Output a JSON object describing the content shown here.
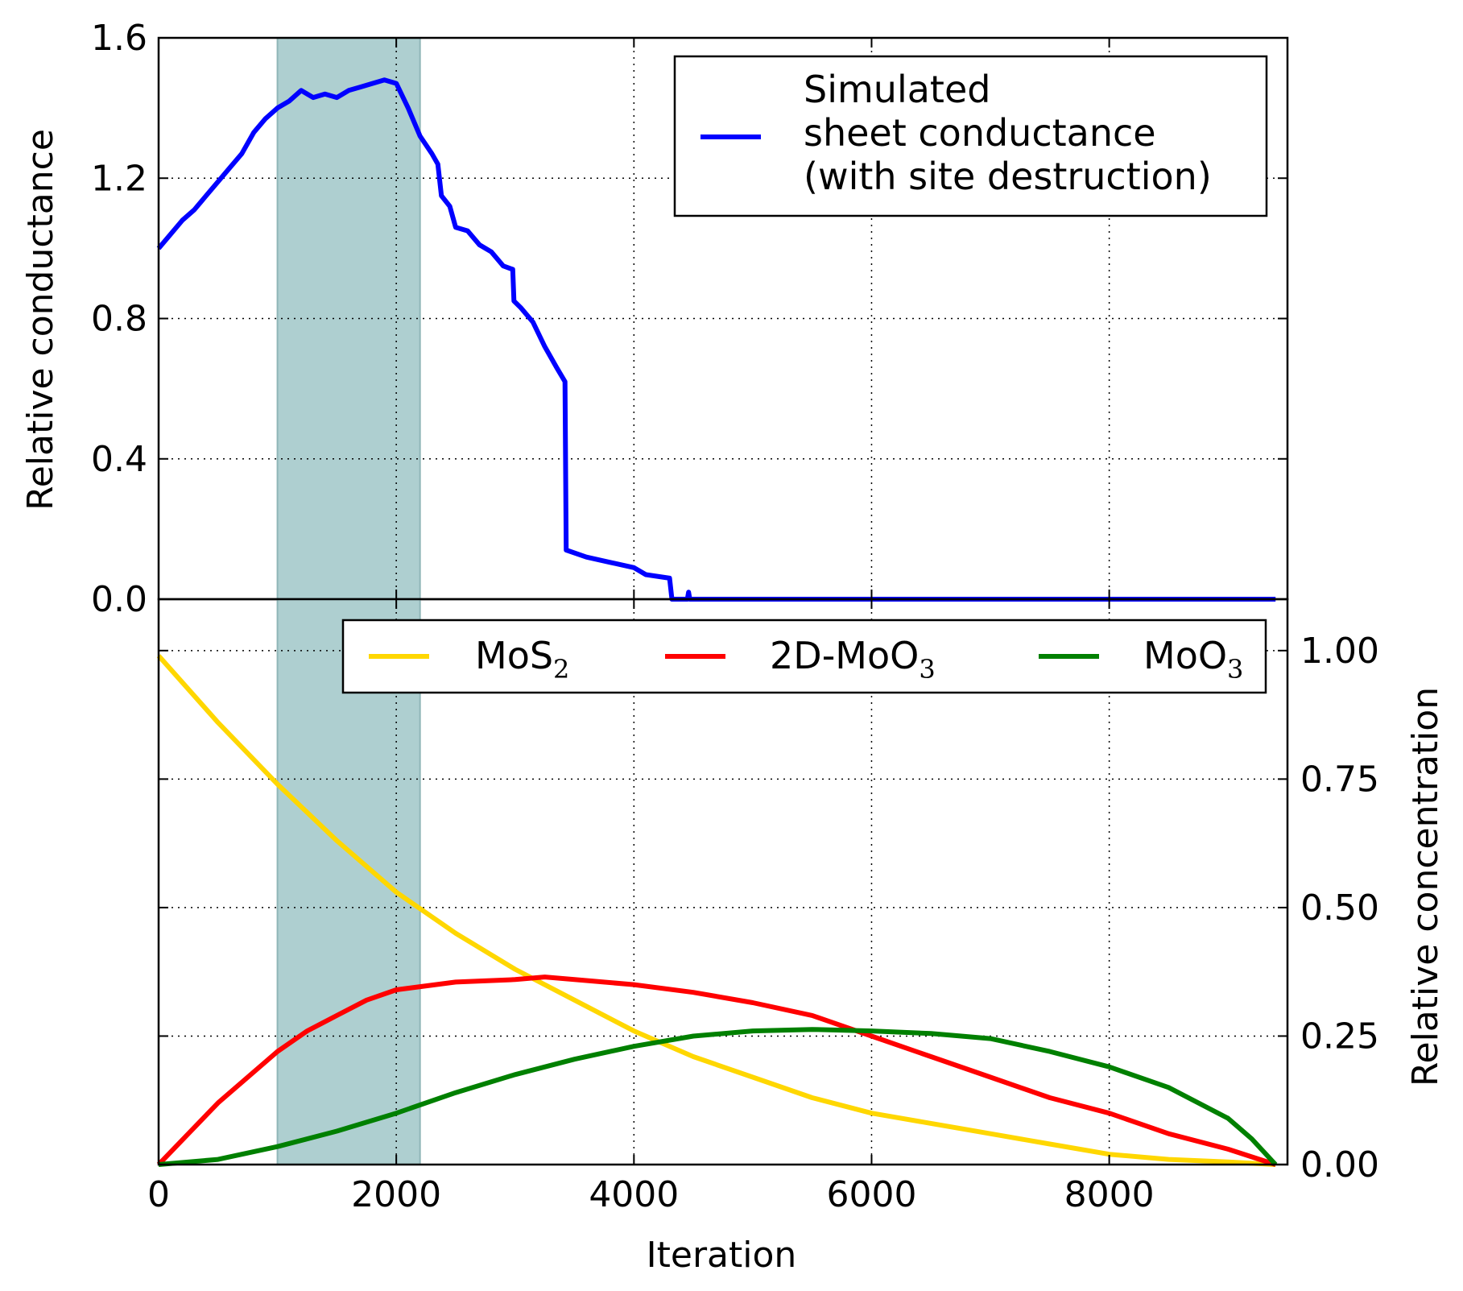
{
  "chart_data": [
    {
      "type": "line",
      "panel": "top",
      "xlabel": "",
      "ylabel": "Relative conductance",
      "xlim": [
        0,
        9500
      ],
      "ylim": [
        0,
        1.6
      ],
      "yticks": [
        0.0,
        0.4,
        0.8,
        1.2,
        1.6
      ],
      "ytick_labels": [
        "0.0",
        "0.4",
        "0.8",
        "1.2",
        "1.6"
      ],
      "grid": true,
      "legend_placement": "top-right",
      "shaded_region": [
        1000,
        2200
      ],
      "shaded_color": "#aecfd0",
      "series": [
        {
          "name": "Simulated sheet conductance (with site destruction)",
          "legend_lines": [
            "Simulated",
            "sheet conductance",
            "(with site destruction)"
          ],
          "color": "#0000ff",
          "points": [
            [
              0,
              1.0
            ],
            [
              100,
              1.04
            ],
            [
              200,
              1.08
            ],
            [
              300,
              1.11
            ],
            [
              400,
              1.15
            ],
            [
              500,
              1.19
            ],
            [
              600,
              1.23
            ],
            [
              700,
              1.27
            ],
            [
              800,
              1.33
            ],
            [
              900,
              1.37
            ],
            [
              1000,
              1.4
            ],
            [
              1100,
              1.42
            ],
            [
              1200,
              1.45
            ],
            [
              1300,
              1.43
            ],
            [
              1400,
              1.44
            ],
            [
              1500,
              1.43
            ],
            [
              1600,
              1.45
            ],
            [
              1700,
              1.46
            ],
            [
              1800,
              1.47
            ],
            [
              1900,
              1.48
            ],
            [
              2000,
              1.47
            ],
            [
              2100,
              1.4
            ],
            [
              2200,
              1.32
            ],
            [
              2300,
              1.27
            ],
            [
              2350,
              1.24
            ],
            [
              2380,
              1.15
            ],
            [
              2450,
              1.12
            ],
            [
              2500,
              1.06
            ],
            [
              2600,
              1.05
            ],
            [
              2700,
              1.01
            ],
            [
              2800,
              0.99
            ],
            [
              2900,
              0.95
            ],
            [
              2980,
              0.94
            ],
            [
              2990,
              0.85
            ],
            [
              3050,
              0.83
            ],
            [
              3150,
              0.79
            ],
            [
              3250,
              0.72
            ],
            [
              3350,
              0.66
            ],
            [
              3420,
              0.62
            ],
            [
              3430,
              0.14
            ],
            [
              3600,
              0.12
            ],
            [
              3800,
              0.105
            ],
            [
              4000,
              0.09
            ],
            [
              4100,
              0.07
            ],
            [
              4300,
              0.06
            ],
            [
              4320,
              0.0
            ],
            [
              4450,
              0.0
            ],
            [
              4460,
              0.02
            ],
            [
              4470,
              0.0
            ],
            [
              9400,
              0.0
            ]
          ]
        }
      ]
    },
    {
      "type": "line",
      "panel": "bottom",
      "xlabel": "Iteration",
      "ylabel": "Relative concentration",
      "xlim": [
        0,
        9500
      ],
      "ylim": [
        0,
        1.1
      ],
      "xticks": [
        0,
        2000,
        4000,
        6000,
        8000
      ],
      "xtick_labels": [
        "0",
        "2000",
        "4000",
        "6000",
        "8000"
      ],
      "yticks": [
        0.0,
        0.25,
        0.5,
        0.75,
        1.0
      ],
      "ytick_labels": [
        "0.00",
        "0.25",
        "0.50",
        "0.75",
        "1.00"
      ],
      "grid": true,
      "legend_placement": "top",
      "shaded_region": [
        1000,
        2200
      ],
      "shaded_color": "#aecfd0",
      "series": [
        {
          "name": "MoS2",
          "label_main": "MoS",
          "label_sub": "2",
          "color": "#ffd700",
          "points": [
            [
              0,
              0.99
            ],
            [
              500,
              0.86
            ],
            [
              1000,
              0.74
            ],
            [
              1500,
              0.63
            ],
            [
              2000,
              0.53
            ],
            [
              2500,
              0.45
            ],
            [
              3000,
              0.38
            ],
            [
              3500,
              0.32
            ],
            [
              4000,
              0.26
            ],
            [
              4500,
              0.21
            ],
            [
              5000,
              0.17
            ],
            [
              5500,
              0.13
            ],
            [
              6000,
              0.1
            ],
            [
              6500,
              0.08
            ],
            [
              7000,
              0.06
            ],
            [
              7500,
              0.04
            ],
            [
              8000,
              0.02
            ],
            [
              8500,
              0.01
            ],
            [
              9000,
              0.005
            ],
            [
              9400,
              0.0
            ]
          ]
        },
        {
          "name": "2D-MoO3",
          "label_main": "2D-MoO",
          "label_sub": "3",
          "color": "#ff0000",
          "points": [
            [
              0,
              0.0
            ],
            [
              250,
              0.06
            ],
            [
              500,
              0.12
            ],
            [
              750,
              0.17
            ],
            [
              1000,
              0.22
            ],
            [
              1250,
              0.26
            ],
            [
              1500,
              0.29
            ],
            [
              1750,
              0.32
            ],
            [
              2000,
              0.34
            ],
            [
              2500,
              0.355
            ],
            [
              3000,
              0.36
            ],
            [
              3250,
              0.365
            ],
            [
              3500,
              0.36
            ],
            [
              4000,
              0.35
            ],
            [
              4500,
              0.335
            ],
            [
              5000,
              0.315
            ],
            [
              5500,
              0.29
            ],
            [
              6000,
              0.25
            ],
            [
              6500,
              0.21
            ],
            [
              7000,
              0.17
            ],
            [
              7500,
              0.13
            ],
            [
              8000,
              0.1
            ],
            [
              8500,
              0.06
            ],
            [
              9000,
              0.03
            ],
            [
              9400,
              0.0
            ]
          ]
        },
        {
          "name": "MoO3",
          "label_main": "MoO",
          "label_sub": "3",
          "color": "#008000",
          "points": [
            [
              0,
              0.0
            ],
            [
              500,
              0.01
            ],
            [
              1000,
              0.035
            ],
            [
              1500,
              0.065
            ],
            [
              2000,
              0.1
            ],
            [
              2500,
              0.14
            ],
            [
              3000,
              0.175
            ],
            [
              3500,
              0.205
            ],
            [
              4000,
              0.23
            ],
            [
              4500,
              0.25
            ],
            [
              5000,
              0.26
            ],
            [
              5500,
              0.263
            ],
            [
              6000,
              0.26
            ],
            [
              6500,
              0.255
            ],
            [
              7000,
              0.245
            ],
            [
              7500,
              0.22
            ],
            [
              8000,
              0.19
            ],
            [
              8500,
              0.15
            ],
            [
              9000,
              0.09
            ],
            [
              9200,
              0.05
            ],
            [
              9400,
              0.0
            ]
          ]
        }
      ]
    }
  ]
}
